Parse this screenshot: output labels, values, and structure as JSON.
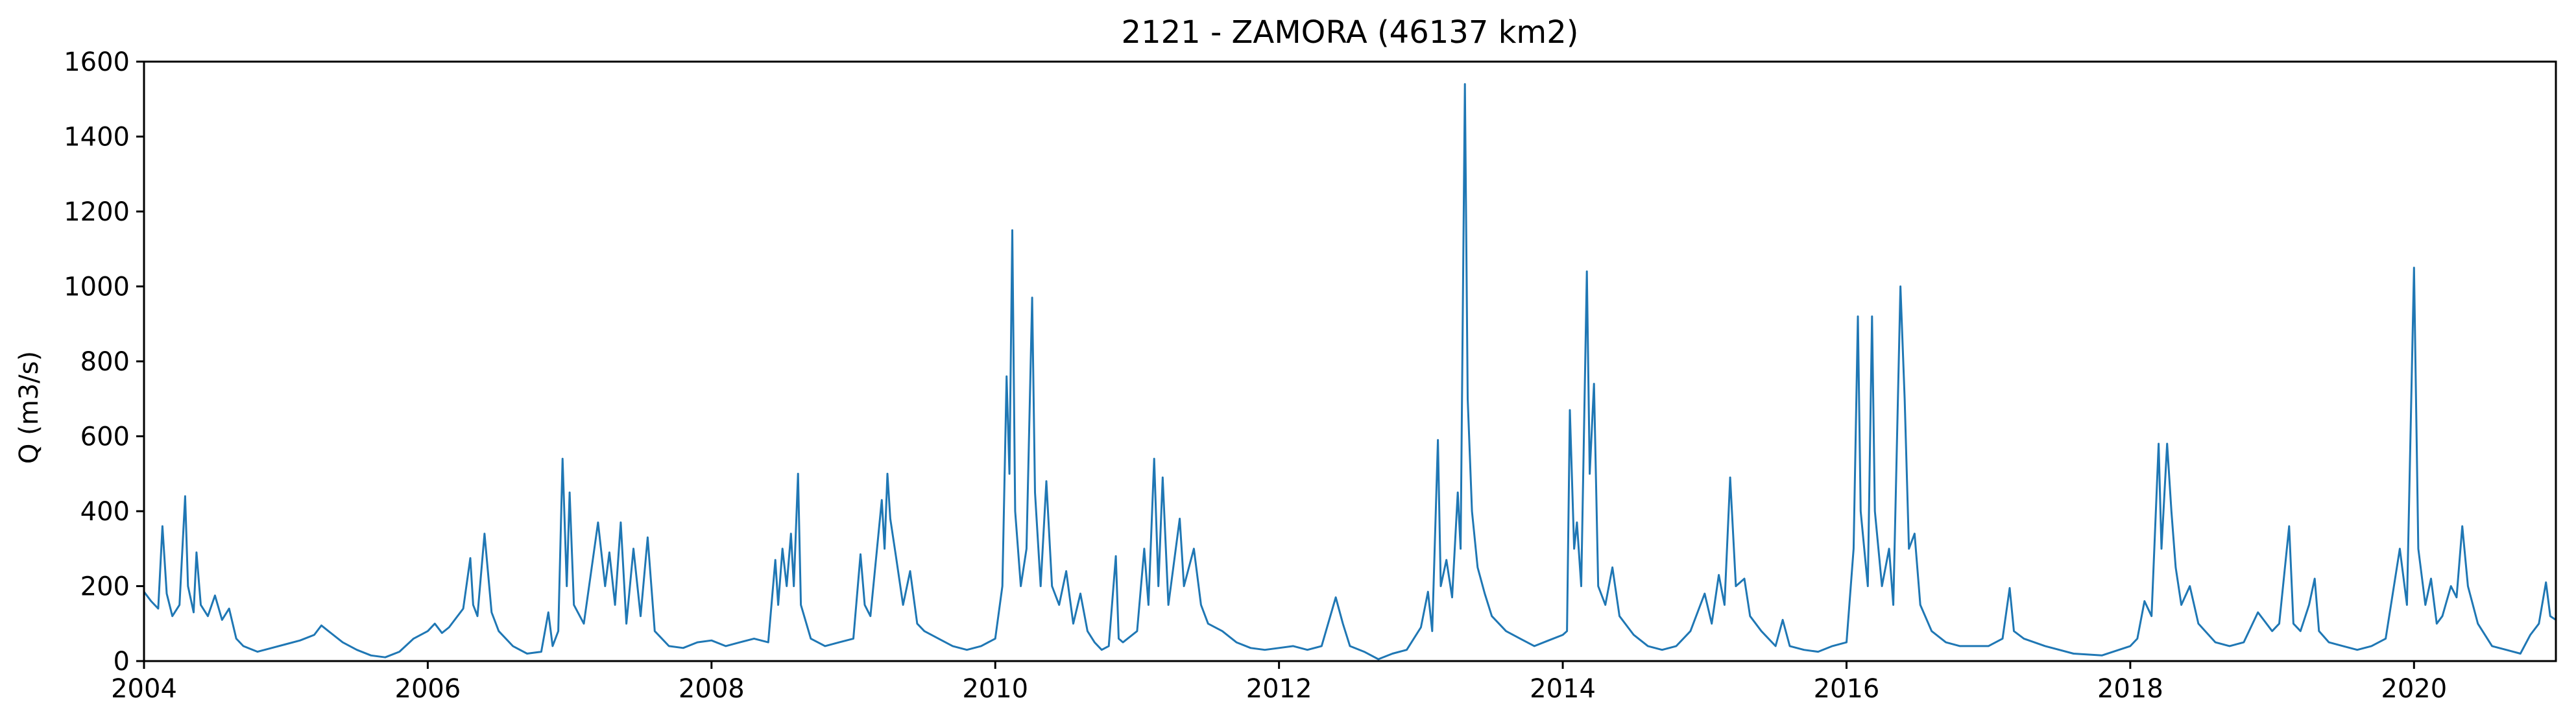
{
  "chart_data": {
    "type": "line",
    "title": "2121 - ZAMORA (46137 km2)",
    "xlabel": "",
    "ylabel": "Q (m3/s)",
    "xlim": [
      2004.0,
      2021.0
    ],
    "ylim": [
      0,
      1600
    ],
    "x_ticks": [
      2004,
      2006,
      2008,
      2010,
      2012,
      2014,
      2016,
      2018,
      2020
    ],
    "x_tick_labels": [
      "2004",
      "2006",
      "2008",
      "2010",
      "2012",
      "2014",
      "2016",
      "2018",
      "2020"
    ],
    "y_ticks": [
      0,
      200,
      400,
      600,
      800,
      1000,
      1200,
      1400,
      1600
    ],
    "y_tick_labels": [
      "0",
      "200",
      "400",
      "600",
      "800",
      "1000",
      "1200",
      "1400",
      "1600"
    ],
    "grid": false,
    "legend": "none",
    "series": [
      {
        "color": "#1f77b4",
        "points": [
          [
            2004.0,
            185
          ],
          [
            2004.05,
            160
          ],
          [
            2004.1,
            140
          ],
          [
            2004.13,
            360
          ],
          [
            2004.16,
            180
          ],
          [
            2004.2,
            120
          ],
          [
            2004.25,
            150
          ],
          [
            2004.29,
            440
          ],
          [
            2004.31,
            200
          ],
          [
            2004.35,
            130
          ],
          [
            2004.37,
            290
          ],
          [
            2004.4,
            150
          ],
          [
            2004.45,
            120
          ],
          [
            2004.5,
            175
          ],
          [
            2004.55,
            110
          ],
          [
            2004.6,
            140
          ],
          [
            2004.65,
            60
          ],
          [
            2004.7,
            40
          ],
          [
            2004.8,
            25
          ],
          [
            2004.9,
            35
          ],
          [
            2005.0,
            45
          ],
          [
            2005.1,
            55
          ],
          [
            2005.2,
            70
          ],
          [
            2005.25,
            95
          ],
          [
            2005.3,
            80
          ],
          [
            2005.4,
            50
          ],
          [
            2005.5,
            30
          ],
          [
            2005.6,
            15
          ],
          [
            2005.7,
            10
          ],
          [
            2005.8,
            25
          ],
          [
            2005.9,
            60
          ],
          [
            2006.0,
            80
          ],
          [
            2006.05,
            100
          ],
          [
            2006.1,
            75
          ],
          [
            2006.15,
            90
          ],
          [
            2006.25,
            140
          ],
          [
            2006.3,
            275
          ],
          [
            2006.32,
            150
          ],
          [
            2006.35,
            120
          ],
          [
            2006.4,
            340
          ],
          [
            2006.45,
            130
          ],
          [
            2006.5,
            80
          ],
          [
            2006.6,
            40
          ],
          [
            2006.7,
            20
          ],
          [
            2006.8,
            25
          ],
          [
            2006.85,
            130
          ],
          [
            2006.88,
            40
          ],
          [
            2006.92,
            80
          ],
          [
            2006.95,
            540
          ],
          [
            2006.98,
            200
          ],
          [
            2007.0,
            450
          ],
          [
            2007.03,
            150
          ],
          [
            2007.1,
            100
          ],
          [
            2007.2,
            370
          ],
          [
            2007.25,
            200
          ],
          [
            2007.28,
            290
          ],
          [
            2007.32,
            150
          ],
          [
            2007.36,
            370
          ],
          [
            2007.4,
            100
          ],
          [
            2007.45,
            300
          ],
          [
            2007.5,
            120
          ],
          [
            2007.55,
            330
          ],
          [
            2007.6,
            80
          ],
          [
            2007.7,
            40
          ],
          [
            2007.8,
            35
          ],
          [
            2007.9,
            50
          ],
          [
            2008.0,
            55
          ],
          [
            2008.1,
            40
          ],
          [
            2008.2,
            50
          ],
          [
            2008.3,
            60
          ],
          [
            2008.4,
            50
          ],
          [
            2008.45,
            270
          ],
          [
            2008.47,
            150
          ],
          [
            2008.5,
            300
          ],
          [
            2008.53,
            200
          ],
          [
            2008.56,
            340
          ],
          [
            2008.58,
            200
          ],
          [
            2008.61,
            500
          ],
          [
            2008.63,
            150
          ],
          [
            2008.7,
            60
          ],
          [
            2008.8,
            40
          ],
          [
            2008.9,
            50
          ],
          [
            2009.0,
            60
          ],
          [
            2009.05,
            285
          ],
          [
            2009.08,
            150
          ],
          [
            2009.12,
            120
          ],
          [
            2009.2,
            430
          ],
          [
            2009.22,
            300
          ],
          [
            2009.24,
            500
          ],
          [
            2009.26,
            380
          ],
          [
            2009.3,
            280
          ],
          [
            2009.35,
            150
          ],
          [
            2009.4,
            240
          ],
          [
            2009.45,
            100
          ],
          [
            2009.5,
            80
          ],
          [
            2009.6,
            60
          ],
          [
            2009.7,
            40
          ],
          [
            2009.8,
            30
          ],
          [
            2009.9,
            40
          ],
          [
            2010.0,
            60
          ],
          [
            2010.05,
            200
          ],
          [
            2010.08,
            760
          ],
          [
            2010.1,
            500
          ],
          [
            2010.12,
            1150
          ],
          [
            2010.14,
            400
          ],
          [
            2010.18,
            200
          ],
          [
            2010.22,
            300
          ],
          [
            2010.26,
            970
          ],
          [
            2010.28,
            450
          ],
          [
            2010.32,
            200
          ],
          [
            2010.36,
            480
          ],
          [
            2010.4,
            200
          ],
          [
            2010.45,
            150
          ],
          [
            2010.5,
            240
          ],
          [
            2010.55,
            100
          ],
          [
            2010.6,
            180
          ],
          [
            2010.65,
            80
          ],
          [
            2010.7,
            50
          ],
          [
            2010.75,
            30
          ],
          [
            2010.8,
            40
          ],
          [
            2010.85,
            280
          ],
          [
            2010.87,
            60
          ],
          [
            2010.9,
            50
          ],
          [
            2011.0,
            80
          ],
          [
            2011.05,
            300
          ],
          [
            2011.08,
            150
          ],
          [
            2011.12,
            540
          ],
          [
            2011.15,
            200
          ],
          [
            2011.18,
            490
          ],
          [
            2011.22,
            150
          ],
          [
            2011.3,
            380
          ],
          [
            2011.33,
            200
          ],
          [
            2011.4,
            300
          ],
          [
            2011.45,
            150
          ],
          [
            2011.5,
            100
          ],
          [
            2011.6,
            80
          ],
          [
            2011.7,
            50
          ],
          [
            2011.8,
            35
          ],
          [
            2011.9,
            30
          ],
          [
            2012.0,
            35
          ],
          [
            2012.1,
            40
          ],
          [
            2012.2,
            30
          ],
          [
            2012.3,
            40
          ],
          [
            2012.4,
            170
          ],
          [
            2012.45,
            100
          ],
          [
            2012.5,
            40
          ],
          [
            2012.6,
            25
          ],
          [
            2012.7,
            5
          ],
          [
            2012.8,
            20
          ],
          [
            2012.9,
            30
          ],
          [
            2013.0,
            90
          ],
          [
            2013.05,
            185
          ],
          [
            2013.08,
            80
          ],
          [
            2013.12,
            590
          ],
          [
            2013.14,
            200
          ],
          [
            2013.18,
            270
          ],
          [
            2013.22,
            170
          ],
          [
            2013.26,
            450
          ],
          [
            2013.28,
            300
          ],
          [
            2013.31,
            1540
          ],
          [
            2013.33,
            700
          ],
          [
            2013.36,
            400
          ],
          [
            2013.4,
            250
          ],
          [
            2013.45,
            180
          ],
          [
            2013.5,
            120
          ],
          [
            2013.6,
            80
          ],
          [
            2013.7,
            60
          ],
          [
            2013.8,
            40
          ],
          [
            2013.9,
            55
          ],
          [
            2014.0,
            70
          ],
          [
            2014.03,
            80
          ],
          [
            2014.05,
            670
          ],
          [
            2014.08,
            300
          ],
          [
            2014.1,
            370
          ],
          [
            2014.13,
            200
          ],
          [
            2014.17,
            1040
          ],
          [
            2014.19,
            500
          ],
          [
            2014.22,
            740
          ],
          [
            2014.25,
            200
          ],
          [
            2014.3,
            150
          ],
          [
            2014.35,
            250
          ],
          [
            2014.4,
            120
          ],
          [
            2014.5,
            70
          ],
          [
            2014.6,
            40
          ],
          [
            2014.7,
            30
          ],
          [
            2014.8,
            40
          ],
          [
            2014.9,
            80
          ],
          [
            2015.0,
            180
          ],
          [
            2015.05,
            100
          ],
          [
            2015.1,
            230
          ],
          [
            2015.14,
            150
          ],
          [
            2015.18,
            490
          ],
          [
            2015.22,
            200
          ],
          [
            2015.28,
            220
          ],
          [
            2015.32,
            120
          ],
          [
            2015.4,
            80
          ],
          [
            2015.5,
            40
          ],
          [
            2015.55,
            110
          ],
          [
            2015.6,
            40
          ],
          [
            2015.7,
            30
          ],
          [
            2015.8,
            25
          ],
          [
            2015.9,
            40
          ],
          [
            2016.0,
            50
          ],
          [
            2016.05,
            300
          ],
          [
            2016.08,
            920
          ],
          [
            2016.1,
            400
          ],
          [
            2016.15,
            200
          ],
          [
            2016.18,
            920
          ],
          [
            2016.2,
            400
          ],
          [
            2016.25,
            200
          ],
          [
            2016.3,
            300
          ],
          [
            2016.33,
            150
          ],
          [
            2016.38,
            1000
          ],
          [
            2016.41,
            700
          ],
          [
            2016.44,
            300
          ],
          [
            2016.48,
            340
          ],
          [
            2016.52,
            150
          ],
          [
            2016.6,
            80
          ],
          [
            2016.7,
            50
          ],
          [
            2016.8,
            40
          ],
          [
            2016.9,
            40
          ],
          [
            2017.0,
            40
          ],
          [
            2017.1,
            60
          ],
          [
            2017.15,
            195
          ],
          [
            2017.18,
            80
          ],
          [
            2017.25,
            60
          ],
          [
            2017.4,
            40
          ],
          [
            2017.6,
            20
          ],
          [
            2017.8,
            15
          ],
          [
            2018.0,
            40
          ],
          [
            2018.05,
            60
          ],
          [
            2018.1,
            160
          ],
          [
            2018.15,
            120
          ],
          [
            2018.2,
            580
          ],
          [
            2018.22,
            300
          ],
          [
            2018.26,
            580
          ],
          [
            2018.29,
            400
          ],
          [
            2018.32,
            250
          ],
          [
            2018.36,
            150
          ],
          [
            2018.42,
            200
          ],
          [
            2018.48,
            100
          ],
          [
            2018.6,
            50
          ],
          [
            2018.7,
            40
          ],
          [
            2018.8,
            50
          ],
          [
            2018.9,
            130
          ],
          [
            2019.0,
            80
          ],
          [
            2019.05,
            100
          ],
          [
            2019.12,
            360
          ],
          [
            2019.15,
            100
          ],
          [
            2019.2,
            80
          ],
          [
            2019.26,
            150
          ],
          [
            2019.3,
            220
          ],
          [
            2019.33,
            80
          ],
          [
            2019.4,
            50
          ],
          [
            2019.5,
            40
          ],
          [
            2019.6,
            30
          ],
          [
            2019.7,
            40
          ],
          [
            2019.8,
            60
          ],
          [
            2019.9,
            300
          ],
          [
            2019.95,
            150
          ],
          [
            2020.0,
            1050
          ],
          [
            2020.03,
            300
          ],
          [
            2020.08,
            150
          ],
          [
            2020.12,
            220
          ],
          [
            2020.16,
            100
          ],
          [
            2020.2,
            120
          ],
          [
            2020.26,
            200
          ],
          [
            2020.3,
            170
          ],
          [
            2020.34,
            360
          ],
          [
            2020.38,
            200
          ],
          [
            2020.45,
            100
          ],
          [
            2020.55,
            40
          ],
          [
            2020.65,
            30
          ],
          [
            2020.75,
            20
          ],
          [
            2020.82,
            70
          ],
          [
            2020.88,
            100
          ],
          [
            2020.93,
            210
          ],
          [
            2020.96,
            120
          ],
          [
            2021.0,
            110
          ]
        ]
      }
    ]
  }
}
